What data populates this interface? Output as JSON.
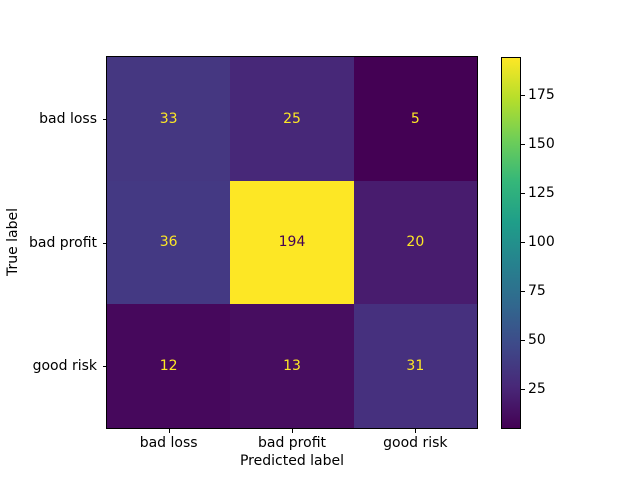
{
  "figure": {
    "background": "#ffffff",
    "text_color": "#000000",
    "spine_color": "#000000"
  },
  "chart_data": {
    "type": "heatmap",
    "title": "",
    "xlabel": "Predicted label",
    "ylabel": "True label",
    "x_categories": [
      "bad loss",
      "bad profit",
      "good risk"
    ],
    "y_categories": [
      "bad loss",
      "bad profit",
      "good risk"
    ],
    "matrix": [
      [
        33,
        25,
        5
      ],
      [
        36,
        194,
        20
      ],
      [
        12,
        13,
        31
      ]
    ],
    "vmin": 5,
    "vmax": 194,
    "colormap": "viridis",
    "grid": false,
    "legend_position": "colorbar-right",
    "colorbar_ticks": [
      25,
      50,
      75,
      100,
      125,
      150,
      175
    ],
    "cell_colors": [
      [
        "#453781",
        "#472878",
        "#440154"
      ],
      [
        "#443983",
        "#fde725",
        "#481c6e"
      ],
      [
        "#46085c",
        "#470d60",
        "#46307e"
      ]
    ],
    "annotation_colors": [
      [
        "#fde725",
        "#fde725",
        "#fde725"
      ],
      [
        "#fde725",
        "#440154",
        "#fde725"
      ],
      [
        "#fde725",
        "#fde725",
        "#fde725"
      ]
    ],
    "viridis_stops": [
      "#440154",
      "#482878",
      "#3e4989",
      "#31688e",
      "#26828e",
      "#1f9e89",
      "#35b779",
      "#6ece58",
      "#b5de2b",
      "#fde725"
    ]
  }
}
